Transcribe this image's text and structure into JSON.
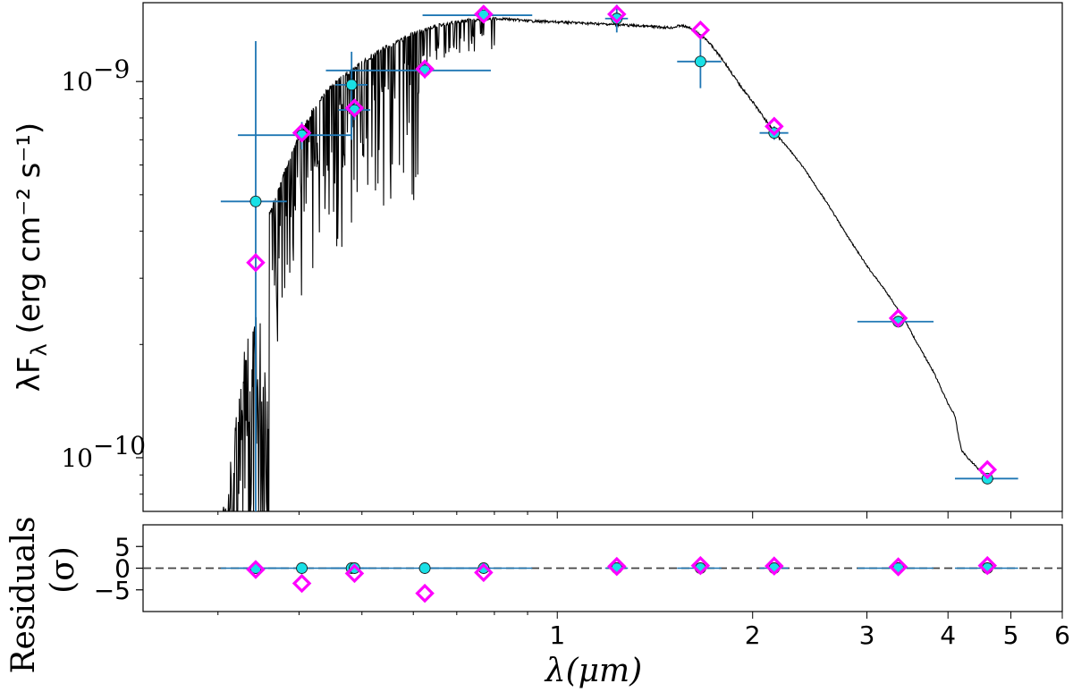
{
  "chart_data": [
    {
      "type": "scatter",
      "xscale": "log",
      "yscale": "log",
      "xlim": [
        0.23,
        6.0
      ],
      "ylim": [
        7.2e-11,
        1.62e-09
      ],
      "ylabel": "λF_λ (erg cm⁻² s⁻¹)",
      "yticks": [
        {
          "value": 1e-09,
          "base": "10",
          "exp": "−9"
        },
        {
          "value": 1e-10,
          "base": "10",
          "exp": "−10"
        }
      ],
      "series": [
        {
          "role": "model-spectrum",
          "style": "line",
          "color": "#000000",
          "x": [
            0.26,
            0.27,
            0.28,
            0.29,
            0.3,
            0.31,
            0.32,
            0.33,
            0.34,
            0.35,
            0.36,
            0.37,
            0.38,
            0.39,
            0.4,
            0.41,
            0.42,
            0.43,
            0.44,
            0.45,
            0.46,
            0.47,
            0.48,
            0.5,
            0.52,
            0.54,
            0.56,
            0.58,
            0.6,
            0.62,
            0.65,
            0.68,
            0.71,
            0.74,
            0.78,
            0.82,
            0.86,
            0.9,
            1.0,
            1.1,
            1.2,
            1.3,
            1.4,
            1.5,
            1.55,
            1.6,
            1.7,
            1.8,
            1.9,
            2.0,
            2.1,
            2.2,
            2.3,
            2.4,
            2.6,
            2.8,
            3.0,
            3.2,
            3.4,
            3.6,
            3.8,
            4.0,
            4.1,
            4.15,
            4.2,
            4.3,
            4.4,
            4.5,
            4.6,
            4.7
          ],
          "y": [
            7e-11,
            7.2e-11,
            7.5e-11,
            8e-11,
            9.5e-11,
            1.3e-10,
            2e-10,
            3e-10,
            3.6e-10,
            4e-10,
            4.5e-10,
            5.1e-10,
            5.8e-10,
            6.6e-10,
            7.3e-10,
            7.8e-10,
            8.5e-10,
            9e-10,
            9.5e-10,
            9.9e-10,
            1.02e-09,
            1.05e-09,
            1.08e-09,
            1.14e-09,
            1.19e-09,
            1.24e-09,
            1.28e-09,
            1.32e-09,
            1.36e-09,
            1.38e-09,
            1.42e-09,
            1.44e-09,
            1.46e-09,
            1.47e-09,
            1.48e-09,
            1.48e-09,
            1.47e-09,
            1.46e-09,
            1.45e-09,
            1.44e-09,
            1.43e-09,
            1.42e-09,
            1.41e-09,
            1.4e-09,
            1.42e-09,
            1.4e-09,
            1.3e-09,
            1.15e-09,
            1e-09,
            8.9e-10,
            7.9e-10,
            7.1e-10,
            6.5e-10,
            5.9e-10,
            4.8e-10,
            3.9e-10,
            3.25e-10,
            2.8e-10,
            2.4e-10,
            2e-10,
            1.7e-10,
            1.4e-10,
            1.3e-10,
            1.15e-10,
            1.05e-10,
            1e-10,
            9.6e-11,
            9.2e-11,
            9e-11,
            8.8e-11
          ]
        },
        {
          "role": "observed-photometry",
          "marker": "circle",
          "color": "#19e0e6",
          "errorbar_color": "#1f77b4",
          "points": [
            {
              "x": 0.343,
              "y": 4.8e-10,
              "xerr_lo": 0.303,
              "xerr_hi": 0.383,
              "yerr_lo": 7e-11,
              "yerr_hi": 1.28e-09
            },
            {
              "x": 0.404,
              "y": 7.2e-10,
              "xerr_lo": 0.322,
              "xerr_hi": 0.482,
              "yerr_lo": 6.6e-10,
              "yerr_hi": 7.8e-10
            },
            {
              "x": 0.482,
              "y": 9.8e-10,
              "xerr_lo": 0.455,
              "xerr_hi": 0.51,
              "yerr_lo": 7e-10,
              "yerr_hi": 1.2e-09
            },
            {
              "x": 0.487,
              "y": 8.4e-10,
              "xerr_lo": 0.46,
              "xerr_hi": 0.515,
              "yerr_lo": 7.9e-10,
              "yerr_hi": 8.9e-10
            },
            {
              "x": 0.625,
              "y": 1.07e-09,
              "xerr_lo": 0.44,
              "xerr_hi": 0.79,
              "yerr_lo": 1.02e-09,
              "yerr_hi": 1.12e-09
            },
            {
              "x": 0.77,
              "y": 1.5e-09,
              "xerr_lo": 0.62,
              "xerr_hi": 0.915,
              "yerr_lo": 1.46e-09,
              "yerr_hi": 1.54e-09
            },
            {
              "x": 1.235,
              "y": 1.47e-09,
              "xerr_lo": 1.185,
              "xerr_hi": 1.285,
              "yerr_lo": 1.35e-09,
              "yerr_hi": 1.6e-09
            },
            {
              "x": 1.662,
              "y": 1.13e-09,
              "xerr_lo": 1.53,
              "xerr_hi": 1.79,
              "yerr_lo": 9.6e-10,
              "yerr_hi": 1.33e-09
            },
            {
              "x": 2.159,
              "y": 7.3e-10,
              "xerr_lo": 2.05,
              "xerr_hi": 2.27,
              "yerr_lo": 7e-10,
              "yerr_hi": 7.6e-10
            },
            {
              "x": 3.353,
              "y": 2.3e-10,
              "xerr_lo": 2.9,
              "xerr_hi": 3.8,
              "yerr_lo": 2.22e-10,
              "yerr_hi": 2.38e-10
            },
            {
              "x": 4.6,
              "y": 8.8e-11,
              "xerr_lo": 4.1,
              "xerr_hi": 5.13,
              "yerr_lo": 8.5e-11,
              "yerr_hi": 9.1e-11
            }
          ]
        },
        {
          "role": "model-photometry",
          "marker": "diamond",
          "color": "#ff00ff",
          "points": [
            {
              "x": 0.343,
              "y": 3.3e-10
            },
            {
              "x": 0.404,
              "y": 7.3e-10
            },
            {
              "x": 0.487,
              "y": 8.5e-10
            },
            {
              "x": 0.625,
              "y": 1.08e-09
            },
            {
              "x": 0.77,
              "y": 1.51e-09
            },
            {
              "x": 1.235,
              "y": 1.51e-09
            },
            {
              "x": 1.662,
              "y": 1.37e-09
            },
            {
              "x": 2.159,
              "y": 7.6e-10
            },
            {
              "x": 3.353,
              "y": 2.35e-10
            },
            {
              "x": 4.6,
              "y": 9.3e-11
            }
          ]
        }
      ]
    },
    {
      "type": "scatter",
      "xscale": "log",
      "xlim": [
        0.23,
        6.0
      ],
      "ylim": [
        -10,
        10
      ],
      "ylabel_line1": "Residuals",
      "ylabel_line2": "(σ)",
      "xlabel": "λ(μm)",
      "xticks": [
        {
          "value": 1,
          "label": "1"
        },
        {
          "value": 2,
          "label": "2"
        },
        {
          "value": 3,
          "label": "3"
        },
        {
          "value": 4,
          "label": "4"
        },
        {
          "value": 5,
          "label": "5"
        },
        {
          "value": 6,
          "label": "6"
        }
      ],
      "yticks": [
        {
          "value": 5,
          "label": "5"
        },
        {
          "value": 0,
          "label": "0"
        },
        {
          "value": -5,
          "label": "−5"
        }
      ],
      "zero_line": {
        "y": 0,
        "style": "dashed",
        "color": "#444444"
      },
      "series": [
        {
          "role": "observed-residuals",
          "marker": "circle",
          "color": "#19e0e6",
          "points": [
            {
              "x": 0.343,
              "y": 0
            },
            {
              "x": 0.404,
              "y": 0
            },
            {
              "x": 0.482,
              "y": 0
            },
            {
              "x": 0.487,
              "y": 0
            },
            {
              "x": 0.625,
              "y": 0
            },
            {
              "x": 0.77,
              "y": 0
            },
            {
              "x": 1.235,
              "y": 0
            },
            {
              "x": 1.662,
              "y": 0
            },
            {
              "x": 2.159,
              "y": 0
            },
            {
              "x": 3.353,
              "y": 0
            },
            {
              "x": 4.6,
              "y": 0
            }
          ]
        },
        {
          "role": "model-residuals",
          "marker": "diamond",
          "color": "#ff00ff",
          "points": [
            {
              "x": 0.343,
              "y": -0.3
            },
            {
              "x": 0.404,
              "y": -3.5
            },
            {
              "x": 0.487,
              "y": -1.2
            },
            {
              "x": 0.625,
              "y": -5.8
            },
            {
              "x": 0.77,
              "y": -1.0
            },
            {
              "x": 1.235,
              "y": 0.4
            },
            {
              "x": 1.662,
              "y": 0.6
            },
            {
              "x": 2.159,
              "y": 0.5
            },
            {
              "x": 3.353,
              "y": 0.3
            },
            {
              "x": 4.6,
              "y": 0.6
            }
          ]
        }
      ]
    }
  ]
}
